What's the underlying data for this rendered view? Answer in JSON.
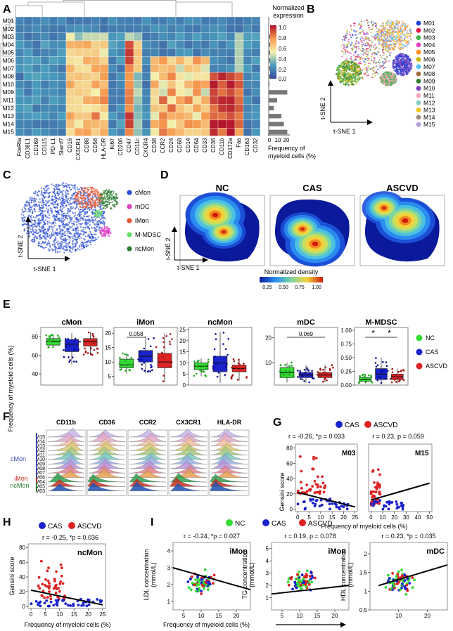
{
  "panels": {
    "A": {
      "letter": "A",
      "clusters": [
        "M01",
        "M02",
        "M03",
        "M04",
        "M05",
        "M06",
        "M07",
        "M08",
        "M10",
        "M09",
        "M11",
        "M12",
        "M13",
        "M14",
        "M15"
      ],
      "markers": [
        "FceRIa",
        "CD38L1",
        "CD169",
        "CD115",
        "PD-L1",
        "Slamf7",
        "CD16",
        "CX3CR1",
        "CD86",
        "CD56",
        "HLA-DR",
        "Ki67",
        "CD206",
        "CD47",
        "CD11c",
        "CXCR4",
        "CD38",
        "CCR2",
        "CD24",
        "CD68",
        "CD14",
        "CD64",
        "CD33",
        "CD36",
        "CD11b",
        "CD172a",
        "Fas",
        "CD163",
        "CD32"
      ],
      "colorbar_title": "Normalized expression",
      "colorbar_ticks": [
        "1.0",
        "0.8",
        "0.6",
        "0.4",
        "0.2",
        "0.0"
      ],
      "freq_values": [
        0,
        0,
        5,
        8,
        7,
        6,
        3,
        4,
        1,
        22,
        10,
        6,
        15,
        18,
        22
      ],
      "freq_ticks": [
        "0",
        "10",
        "20"
      ],
      "freq_label_1": "Frequency of",
      "freq_label_2": "myeloid cells (%)"
    },
    "B": {
      "letter": "B",
      "legend": [
        "M01",
        "M02",
        "M03",
        "M04",
        "M05",
        "M06",
        "M07",
        "M08",
        "M09",
        "M10",
        "M11",
        "M12",
        "M13",
        "M14",
        "M15"
      ],
      "colors": [
        "#1f3fd6",
        "#e6194b",
        "#3cb44b",
        "#e040c0",
        "#ff8c1a",
        "#c8b400",
        "#4fc3f7",
        "#9e6b3b",
        "#2e7d32",
        "#7b3fbf",
        "#f4a6b8",
        "#80cbc4",
        "#f0c419",
        "#a1887f",
        "#b39ddb"
      ],
      "xlabel": "t-SNE 1",
      "ylabel": "t-SNE 2"
    },
    "C": {
      "letter": "C",
      "legend": [
        "cMon",
        "mDC",
        "iMon",
        "M-MDSC",
        "ncMon"
      ],
      "colors": [
        "#2b4fd6",
        "#e040c0",
        "#e8552e",
        "#66dd66",
        "#2e7d32"
      ],
      "xlabel": "t-SNE 1",
      "ylabel": "t-SNE 2"
    },
    "D": {
      "letter": "D",
      "titles": [
        "NC",
        "CAS",
        "ASCVD"
      ],
      "xlabel": "t-SNE 1",
      "ylabel": "t-SNE 2",
      "colorbar_title": "Normalized density",
      "colorbar_ticks": [
        "0.25",
        "0.50",
        "0.75",
        "1.00"
      ]
    },
    "E": {
      "letter": "E",
      "ylabel": "Frequency of myeloid cells (%)",
      "legend": [
        "NC",
        "CAS",
        "ASCVD"
      ],
      "colors": [
        "#33dd33",
        "#1a22cc",
        "#dd2222"
      ]
    },
    "F": {
      "letter": "F",
      "markers": [
        "CD11b",
        "CD36",
        "CCR2",
        "CX3CR1",
        "HLA-DR"
      ],
      "rows": [
        "M15",
        "M14",
        "M13",
        "M12",
        "M11",
        "M10",
        "M09",
        "M08",
        "M07",
        "M06",
        "M04",
        "M05",
        "M03"
      ],
      "group_cmon": "cMon",
      "group_imon": "iMon",
      "group_ncmon": "ncMon"
    },
    "G": {
      "letter": "G",
      "legend": [
        "CAS",
        "ASCVD"
      ],
      "stats_left": "r = -0.26, *p = 0.033",
      "stats_right": "r = 0.23, p = 0.059",
      "title_left": "M03",
      "title_right": "M15",
      "ylabel": "Gensini score",
      "xlabel": "Frequency of myeloid cells (%)",
      "left_xticks": [
        "0",
        "5",
        "10",
        "15",
        "20",
        "25"
      ],
      "right_xticks": [
        "0",
        "10",
        "20",
        "30",
        "40",
        "50"
      ],
      "yticks": [
        "0",
        "20",
        "40",
        "60",
        "80"
      ]
    },
    "H": {
      "letter": "H",
      "legend": [
        "CAS",
        "ASCVD"
      ],
      "stats": "r = -0.25, *p = 0.036",
      "title": "ncMon",
      "ylabel": "Gensini score",
      "xlabel": "Frequency of myeloid cells (%)",
      "xticks": [
        "0",
        "5",
        "10",
        "15",
        "20",
        "25"
      ],
      "yticks": [
        "0",
        "20",
        "40",
        "60",
        "80"
      ]
    },
    "I": {
      "letter": "I",
      "legend": [
        "NC",
        "CAS",
        "ASCVD"
      ],
      "xlabel": "Frequency of myeloid cells (%)"
    }
  },
  "chart_data": [
    {
      "type": "box",
      "panel": "E",
      "groups": [
        "NC",
        "CAS",
        "ASCVD"
      ],
      "subplots": [
        {
          "title": "cMon",
          "yticks": [
            40,
            60,
            80
          ],
          "ylim": [
            28,
            90
          ],
          "median": [
            75,
            72,
            75
          ],
          "q1": [
            71,
            64,
            70
          ],
          "q3": [
            78,
            77,
            78
          ],
          "whisker_low": [
            68,
            50,
            60
          ],
          "whisker_high": [
            82,
            84,
            85
          ]
        },
        {
          "title": "iMon",
          "yticks": [
            5,
            10,
            15,
            20
          ],
          "ylim": [
            2,
            22
          ],
          "median": [
            9,
            12,
            10
          ],
          "q1": [
            8,
            10,
            8
          ],
          "q3": [
            11,
            14,
            13
          ],
          "whisker_low": [
            6,
            6,
            3
          ],
          "whisker_high": [
            13,
            19,
            20
          ],
          "annotation": {
            "label": "0.058",
            "between": [
              0,
              1
            ]
          }
        },
        {
          "title": "ncMon",
          "yticks": [
            0,
            5,
            10,
            15,
            20,
            25
          ],
          "ylim": [
            0,
            26
          ],
          "median": [
            8.5,
            10,
            7.5
          ],
          "q1": [
            7,
            6,
            6
          ],
          "q3": [
            10,
            13,
            9
          ],
          "whisker_low": [
            4,
            1,
            2
          ],
          "whisker_high": [
            12,
            24,
            12
          ]
        },
        {
          "title": "mDC",
          "yticks": [
            10,
            20
          ],
          "ylim": [
            1,
            24
          ],
          "median": [
            6,
            5,
            5
          ],
          "q1": [
            4,
            4,
            4
          ],
          "q3": [
            8,
            6,
            6
          ],
          "whisker_low": [
            2,
            2,
            2
          ],
          "whisker_high": [
            10,
            9,
            9
          ],
          "annotation": {
            "label": "0.069",
            "between": [
              0,
              2
            ]
          }
        },
        {
          "title": "M-MDSC",
          "yticks": [
            0.0,
            0.25,
            0.5,
            0.75,
            1.0
          ],
          "ylim": [
            0,
            1.05
          ],
          "median": [
            0.1,
            0.2,
            0.15
          ],
          "q1": [
            0.07,
            0.1,
            0.1
          ],
          "q3": [
            0.14,
            0.3,
            0.2
          ],
          "whisker_low": [
            0.03,
            0.02,
            0.03
          ],
          "whisker_high": [
            0.2,
            0.5,
            0.3
          ],
          "annotation": {
            "label": "*",
            "between": [
              0,
              1
            ]
          },
          "annotation2": {
            "label": "*",
            "between": [
              1,
              2
            ]
          }
        }
      ]
    },
    {
      "type": "scatter",
      "panel": "I",
      "subplots": [
        {
          "stats": "r = -0.24, *p = 0.027",
          "title": "iMon",
          "ylabel_1": "LDL concentration",
          "ylabel_2": "(mmol/L)",
          "xticks": [
            5,
            10,
            15,
            20
          ],
          "yticks": [
            1,
            2,
            3,
            4
          ],
          "xlim": [
            2,
            24
          ],
          "ylim": [
            0.5,
            4.5
          ],
          "fit": [
            [
              2,
              3.0
            ],
            [
              24,
              1.7
            ]
          ]
        },
        {
          "stats": "r = 0.19, p = 0.078",
          "title": "iMon",
          "ylabel_1": "TG concentration",
          "ylabel_2": "(mmol/L)",
          "xticks": [
            5,
            10,
            15,
            20
          ],
          "yticks": [
            1,
            2,
            3,
            4,
            5
          ],
          "xlim": [
            2,
            24
          ],
          "ylim": [
            0,
            5.5
          ],
          "fit": [
            [
              2,
              1.3
            ],
            [
              24,
              2.0
            ]
          ]
        },
        {
          "stats": "r = 0.23, *p = 0.035",
          "title": "mDC",
          "ylabel_1": "HDL concentration",
          "ylabel_2": "(mmol/L)",
          "xticks": [
            10,
            20
          ],
          "yticks": [
            0.5,
            1.0,
            1.5,
            2.0
          ],
          "xlim": [
            0,
            27
          ],
          "ylim": [
            0.5,
            2.3
          ],
          "fit": [
            [
              3,
              1.15
            ],
            [
              27,
              1.7
            ]
          ]
        }
      ]
    }
  ]
}
